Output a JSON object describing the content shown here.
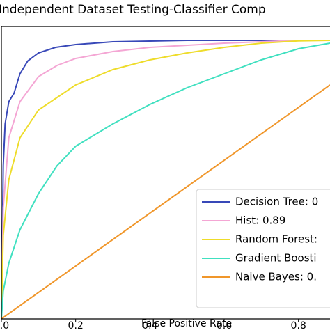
{
  "chart_data": {
    "type": "line",
    "title": "Independent Dataset Testing-Classifier Comp",
    "x_label": "False Positive Rate",
    "xlim": [
      0,
      0.885
    ],
    "ylim": [
      0,
      1.05
    ],
    "xticks": [
      {
        "value": 0,
        "label": "0.0"
      },
      0.2,
      0.4,
      0.6,
      0.8
    ],
    "legend": "lower right",
    "series": [
      {
        "name": "Decision Tree: 0",
        "color": "#3848b8",
        "x": [
          0,
          0.005,
          0.01,
          0.02,
          0.034,
          0.05,
          0.071,
          0.1,
          0.146,
          0.2,
          0.3,
          0.5,
          0.885
        ],
        "y": [
          0,
          0.55,
          0.7,
          0.78,
          0.81,
          0.88,
          0.926,
          0.955,
          0.975,
          0.985,
          0.995,
          1,
          1
        ]
      },
      {
        "name": "Hist: 0.89",
        "color": "#f4a6d4",
        "x": [
          0,
          0.005,
          0.02,
          0.05,
          0.1,
          0.15,
          0.2,
          0.3,
          0.4,
          0.6,
          0.8,
          0.885
        ],
        "y": [
          0,
          0.4,
          0.65,
          0.78,
          0.87,
          0.91,
          0.935,
          0.96,
          0.975,
          0.99,
          1,
          1
        ]
      },
      {
        "name": "Random Forest:",
        "color": "#eedc2a",
        "x": [
          0,
          0.005,
          0.02,
          0.05,
          0.1,
          0.2,
          0.3,
          0.4,
          0.5,
          0.6,
          0.7,
          0.8,
          0.885
        ],
        "y": [
          0,
          0.3,
          0.5,
          0.65,
          0.75,
          0.84,
          0.895,
          0.93,
          0.955,
          0.975,
          0.99,
          0.998,
          1
        ]
      },
      {
        "name": "Gradient Boosti",
        "color": "#40e0c0",
        "x": [
          0,
          0.005,
          0.02,
          0.05,
          0.1,
          0.15,
          0.2,
          0.3,
          0.4,
          0.5,
          0.6,
          0.7,
          0.8,
          0.885
        ],
        "y": [
          0,
          0.1,
          0.2,
          0.32,
          0.45,
          0.55,
          0.62,
          0.7,
          0.77,
          0.83,
          0.88,
          0.93,
          0.97,
          0.99
        ]
      },
      {
        "name": "Naive Bayes: 0.",
        "color": "#f0962a",
        "x": [
          0,
          0.885
        ],
        "y": [
          0,
          0.84
        ]
      }
    ]
  }
}
